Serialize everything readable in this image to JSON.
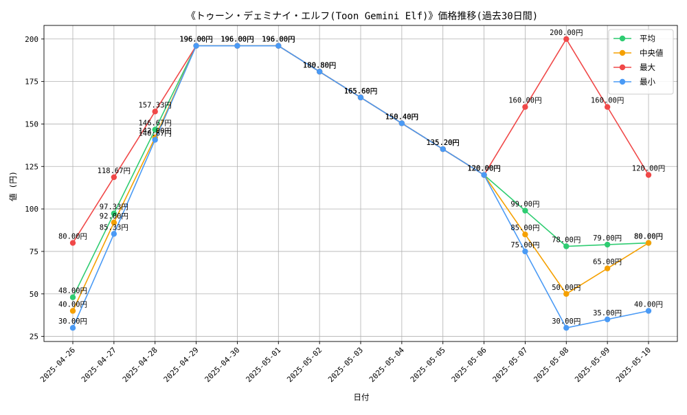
{
  "chart_data": {
    "type": "line",
    "title": "《トゥーン・デェミナイ・エルフ(Toon Gemini Elf)》価格推移(過去30日間)",
    "xlabel": "日付",
    "ylabel": "値 (円)",
    "ylim": [
      22,
      208
    ],
    "yticks": [
      25,
      50,
      75,
      100,
      125,
      150,
      175,
      200
    ],
    "grid": true,
    "legend_position": "top-right",
    "value_suffix": "円",
    "categories": [
      "2025-04-26",
      "2025-04-27",
      "2025-04-28",
      "2025-04-29",
      "2025-04-30",
      "2025-05-01",
      "2025-05-02",
      "2025-05-03",
      "2025-05-04",
      "2025-05-05",
      "2025-05-06",
      "2025-05-07",
      "2025-05-08",
      "2025-05-09",
      "2025-05-10"
    ],
    "series": [
      {
        "name": "平均",
        "color": "#2ecc71",
        "values": [
          48.0,
          97.33,
          146.67,
          196.0,
          196.0,
          196.0,
          180.8,
          165.6,
          150.4,
          135.2,
          120.0,
          99.0,
          78.0,
          79.0,
          80.0
        ]
      },
      {
        "name": "中央値",
        "color": "#f5a000",
        "values": [
          40.0,
          92.0,
          142.0,
          196.0,
          196.0,
          196.0,
          180.8,
          165.6,
          150.4,
          135.2,
          120.0,
          85.0,
          50.0,
          65.0,
          80.0
        ]
      },
      {
        "name": "最大",
        "color": "#f04848",
        "values": [
          80.0,
          118.67,
          157.33,
          196.0,
          196.0,
          196.0,
          180.8,
          165.6,
          150.4,
          135.2,
          120.0,
          160.0,
          200.0,
          160.0,
          120.0
        ]
      },
      {
        "name": "最小",
        "color": "#4a9af5",
        "values": [
          30.0,
          85.33,
          140.67,
          196.0,
          196.0,
          196.0,
          180.8,
          165.6,
          150.4,
          135.2,
          120.0,
          75.0,
          30.0,
          35.0,
          40.0
        ]
      }
    ]
  }
}
